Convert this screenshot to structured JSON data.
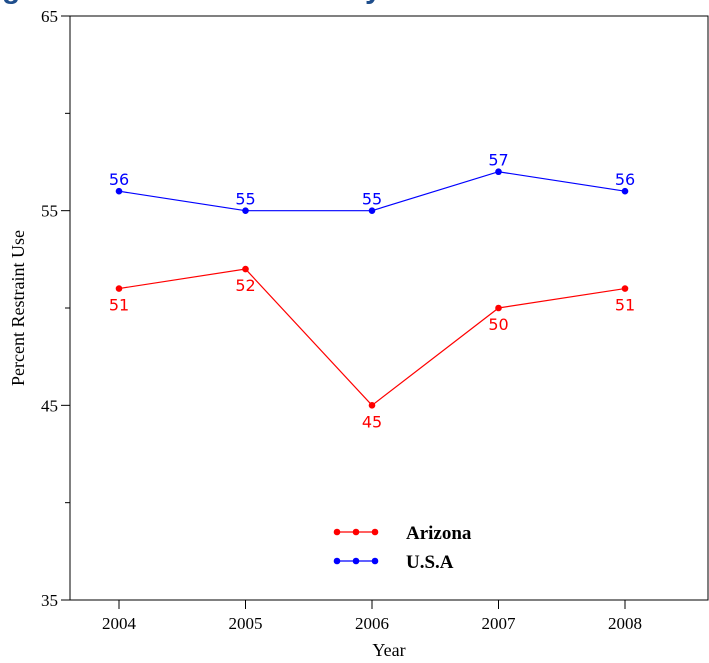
{
  "chart_data": {
    "type": "line",
    "title_fragment_left": "g",
    "title_fragment_right": "y",
    "x": [
      2004,
      2005,
      2006,
      2007,
      2008
    ],
    "x_tick_labels": [
      "2004",
      "2005",
      "2006",
      "2007",
      "2008"
    ],
    "y_tick_labels": [
      "35",
      "45",
      "55",
      "65"
    ],
    "y_ticks": [
      35,
      45,
      55,
      65
    ],
    "xlabel": "Year",
    "ylabel": "Percent Restraint Use",
    "ylim": [
      35,
      65
    ],
    "grid": false,
    "legend_position": "bottom-center",
    "series": [
      {
        "name": "Arizona",
        "color": "#ff0000",
        "values": [
          51,
          52,
          45,
          50,
          51
        ],
        "labels": [
          "51",
          "52",
          "45",
          "50",
          "51"
        ],
        "label_side": "below"
      },
      {
        "name": "U.S.A",
        "color": "#0000ff",
        "values": [
          56,
          55,
          55,
          57,
          56
        ],
        "labels": [
          "56",
          "55",
          "55",
          "57",
          "56"
        ],
        "label_side": "above"
      }
    ]
  }
}
